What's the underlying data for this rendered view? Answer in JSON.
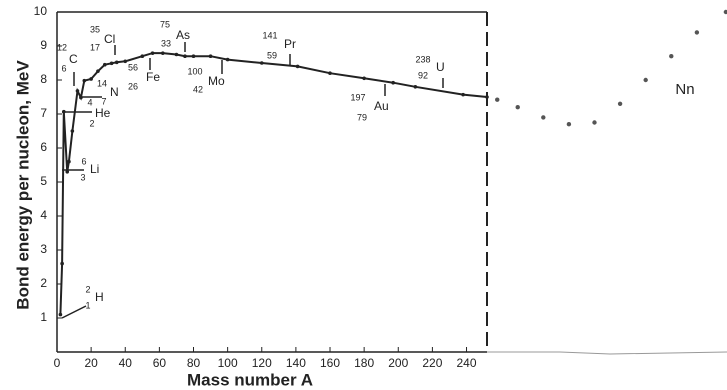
{
  "chart_data": {
    "type": "line",
    "xlabel": "Mass number A",
    "ylabel": "Bond energy per nucleon, MeV",
    "xlim": [
      0,
      252
    ],
    "ylim": [
      0,
      10
    ],
    "xticks": [
      0,
      20,
      40,
      60,
      80,
      100,
      120,
      140,
      160,
      180,
      200,
      220,
      240
    ],
    "yticks": [
      1,
      2,
      3,
      4,
      5,
      6,
      7,
      8,
      9,
      10
    ],
    "series": [
      {
        "color": "#222222",
        "line": true,
        "x": [
          2,
          3,
          4,
          6,
          7,
          9,
          12,
          14,
          16,
          20,
          24,
          28,
          32,
          35,
          40,
          50,
          56,
          62,
          70,
          75,
          80,
          90,
          100,
          120,
          141,
          160,
          180,
          197,
          210,
          238,
          252
        ],
        "values": [
          1.1,
          2.6,
          7.07,
          5.3,
          5.6,
          6.5,
          7.68,
          7.48,
          7.98,
          8.03,
          8.26,
          8.45,
          8.49,
          8.52,
          8.55,
          8.7,
          8.79,
          8.79,
          8.75,
          8.7,
          8.7,
          8.7,
          8.6,
          8.5,
          8.4,
          8.2,
          8.05,
          7.92,
          7.8,
          7.57,
          7.5
        ]
      },
      {
        "color": "#555555",
        "line": false,
        "x": [
          258,
          270,
          285,
          300,
          315,
          330,
          345,
          360,
          375,
          392
        ],
        "values": [
          7.42,
          7.2,
          6.9,
          6.7,
          6.75,
          7.3,
          8.0,
          8.7,
          9.4,
          10.0
        ]
      }
    ],
    "annotations": [
      {
        "mass": "2",
        "number": "1",
        "symbol": "H"
      },
      {
        "mass": "6",
        "number": "3",
        "symbol": "Li"
      },
      {
        "mass": "4",
        "number": "2",
        "symbol": "He"
      },
      {
        "mass": "14",
        "number": "7",
        "symbol": "N"
      },
      {
        "mass": "12",
        "number": "6",
        "symbol": "C"
      },
      {
        "mass": "35",
        "number": "17",
        "symbol": "Cl"
      },
      {
        "mass": "56",
        "number": "26",
        "symbol": "Fe"
      },
      {
        "mass": "75",
        "number": "33",
        "symbol": "As"
      },
      {
        "mass": "100",
        "number": "42",
        "symbol": "Mo"
      },
      {
        "mass": "141",
        "number": "59",
        "symbol": "Pr"
      },
      {
        "mass": "197",
        "number": "79",
        "symbol": "Au"
      },
      {
        "mass": "238",
        "number": "92",
        "symbol": "U"
      }
    ],
    "extrapolation_label": "Nn"
  }
}
